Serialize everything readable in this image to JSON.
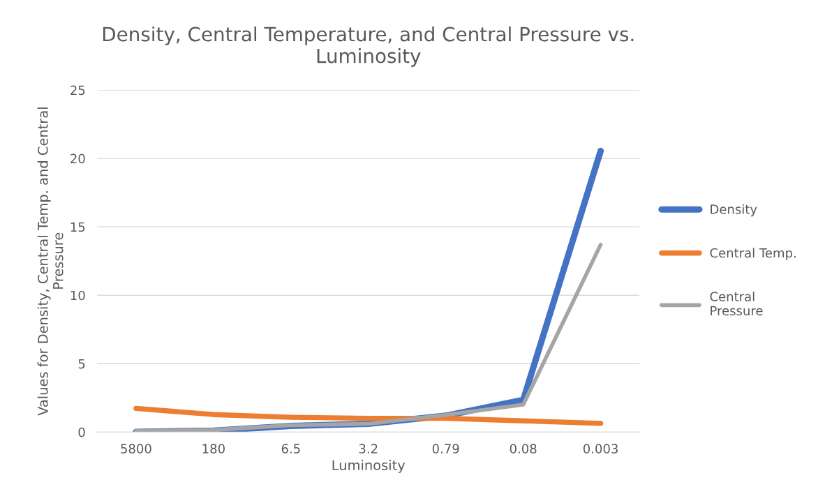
{
  "chart_data": {
    "type": "line",
    "title": "Density, Central Temperature, and Central Pressure vs.\nLuminosity",
    "xlabel": "Luminosity",
    "ylabel": "Values for Density, Central Temp. and Central\nPressure",
    "categories": [
      "5800",
      "180",
      "6.5",
      "3.2",
      "0.79",
      "0.08",
      "0.003"
    ],
    "series": [
      {
        "name": "Density",
        "color": "#4472c4",
        "values": [
          0.02,
          0.1,
          0.45,
          0.6,
          1.2,
          2.35,
          20.55
        ]
      },
      {
        "name": "Central Temp.",
        "color": "#ed7d31",
        "values": [
          1.73,
          1.28,
          1.08,
          1.0,
          1.0,
          0.82,
          0.64
        ]
      },
      {
        "name": "Central\nPressure",
        "color": "#a5a5a5",
        "values": [
          0.08,
          0.15,
          0.5,
          0.6,
          1.25,
          2.0,
          13.7
        ]
      }
    ],
    "ylim": [
      0,
      25
    ],
    "yticks": [
      0,
      5,
      10,
      15,
      20,
      25
    ],
    "grid": "y",
    "legend": "right",
    "marker": "none",
    "line_style": "solid"
  }
}
